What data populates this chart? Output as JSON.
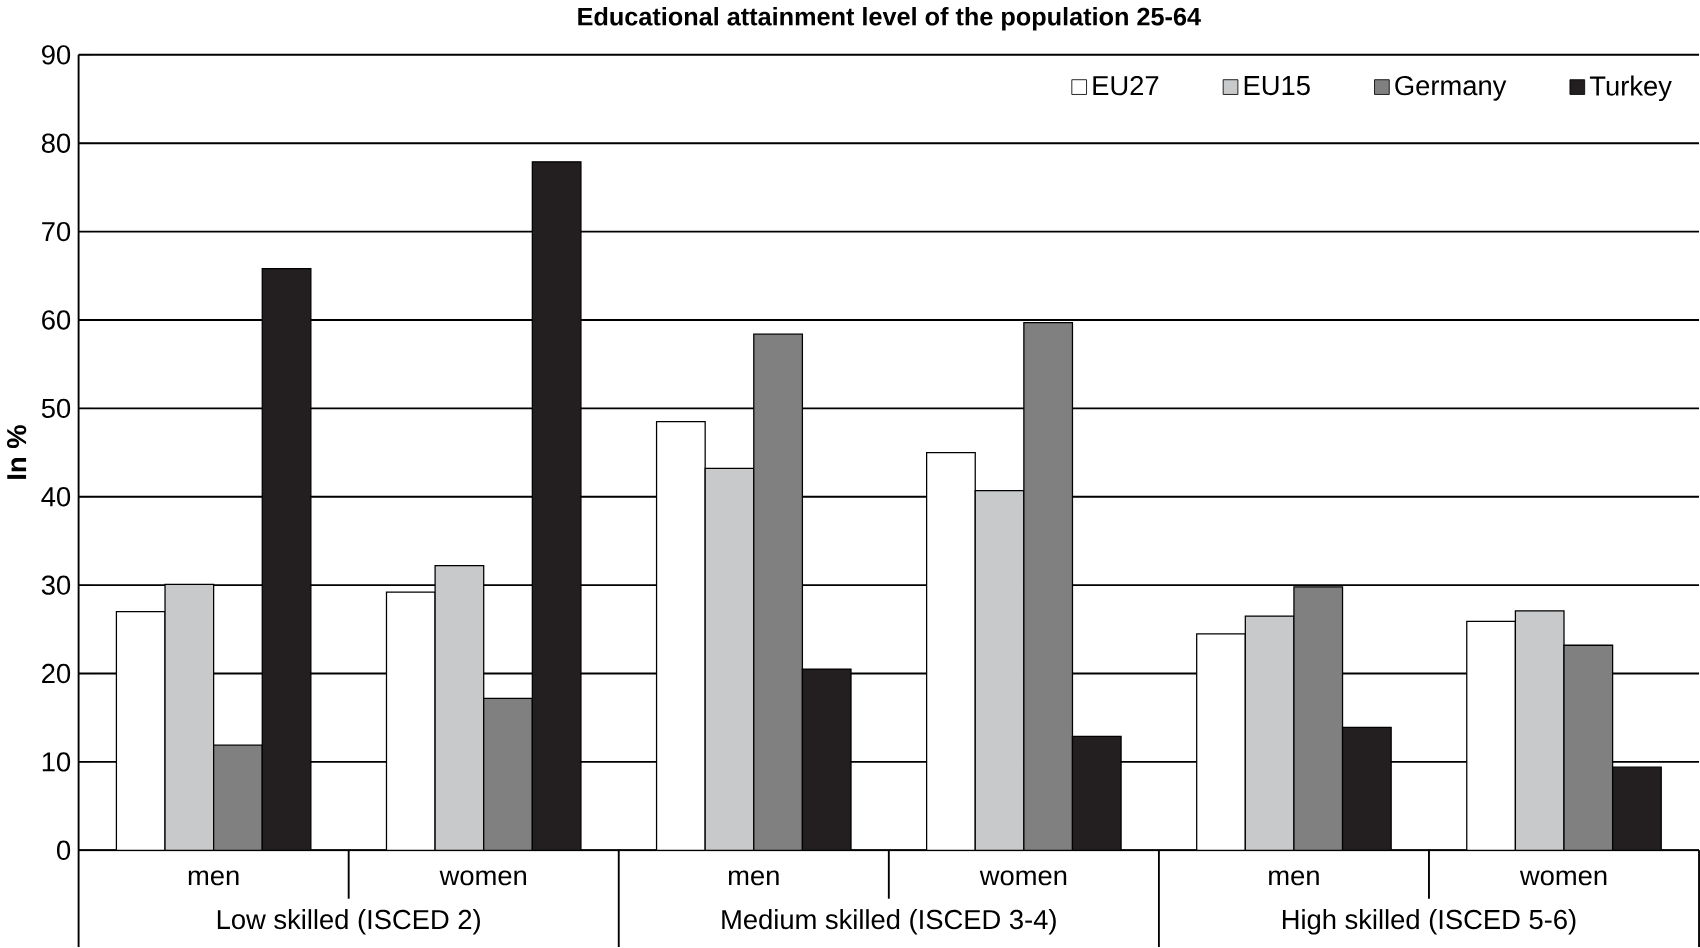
{
  "chart_data": {
    "type": "bar",
    "title": "Educational attainment level of the population 25-64",
    "ylabel": "In %",
    "categories": [
      "men",
      "women",
      "men",
      "women",
      "men",
      "women"
    ],
    "annotations": [
      "Low skilled (ISCED 2)",
      "Medium skilled (ISCED 3-4)",
      "High skilled (ISCED 5-6)"
    ],
    "series": [
      {
        "name": "EU27",
        "color": "#ffffff",
        "values": [
          27.0,
          29.2,
          48.5,
          45.0,
          24.5,
          25.9
        ]
      },
      {
        "name": "EU15",
        "color": "#c8c9cb",
        "values": [
          30.1,
          32.2,
          43.2,
          40.7,
          26.5,
          27.1
        ]
      },
      {
        "name": "Germany",
        "color": "#808080",
        "values": [
          11.9,
          17.2,
          58.4,
          59.7,
          29.8,
          23.2
        ]
      },
      {
        "name": "Turkey",
        "color": "#231f20",
        "values": [
          65.8,
          77.9,
          20.5,
          12.9,
          13.9,
          9.4
        ]
      }
    ],
    "ylim": [
      0,
      90
    ],
    "yticks": [
      0,
      10,
      20,
      30,
      40,
      50,
      60,
      70,
      80,
      90
    ],
    "grid": "y",
    "legend": "top right"
  }
}
